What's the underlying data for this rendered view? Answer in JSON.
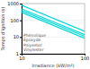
{
  "chart_data": {
    "type": "line",
    "title": "",
    "xlabel": "Irradiance (kW/m²)",
    "ylabel": "Temps d'ignition (s)",
    "x": [
      10,
      100
    ],
    "series": [
      {
        "name": "Phénolique",
        "color": "#00d8d8",
        "values": [
          800,
          22
        ]
      },
      {
        "name": "Époxyde",
        "color": "#00d8d8",
        "values": [
          480,
          14
        ]
      },
      {
        "name": "Polyester",
        "color": "#00d8d8",
        "values": [
          380,
          11
        ]
      },
      {
        "name": "Vinylester",
        "color": "#00d8d8",
        "values": [
          300,
          8.5
        ]
      }
    ],
    "log": true,
    "xlim": [
      10,
      100
    ],
    "xticks": [
      10,
      100
    ],
    "ylim": [
      1,
      1000
    ],
    "yticks": [
      1,
      10,
      100,
      1000
    ],
    "grid": true
  }
}
